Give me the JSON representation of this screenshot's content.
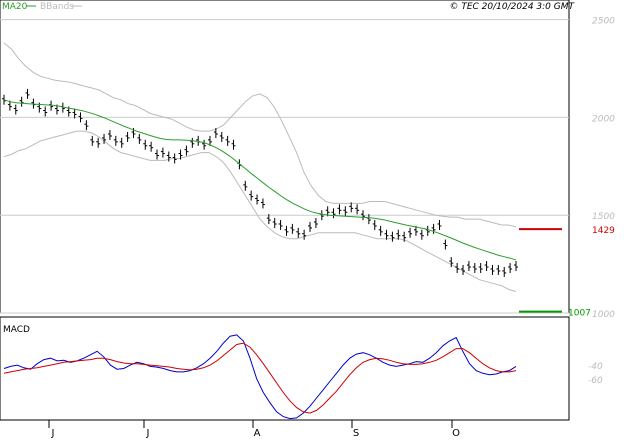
{
  "header": {
    "legend": [
      {
        "label": "MA20",
        "color": "#2a9d2a"
      },
      {
        "label": "BBands",
        "color": "#bbbbbb"
      }
    ],
    "copyright": "© TEC 20/10/2024 3:0 GMT"
  },
  "chart_data": [
    {
      "type": "line",
      "panel": "price",
      "ylim": [
        1000,
        2600
      ],
      "y_ticks": [
        "2500",
        "2000",
        "1500",
        "1000"
      ],
      "x_ticks": [
        "J",
        "J",
        "A",
        "S",
        "O"
      ],
      "grid": true,
      "legend_position": "top-left",
      "price_bars": [
        2090,
        2060,
        2040,
        2080,
        2120,
        2070,
        2050,
        2030,
        2060,
        2040,
        2050,
        2030,
        2020,
        2000,
        1960,
        1880,
        1870,
        1890,
        1910,
        1880,
        1870,
        1900,
        1920,
        1890,
        1860,
        1850,
        1810,
        1820,
        1800,
        1790,
        1810,
        1830,
        1870,
        1880,
        1860,
        1880,
        1920,
        1900,
        1880,
        1860,
        1760,
        1650,
        1600,
        1580,
        1560,
        1480,
        1460,
        1450,
        1420,
        1430,
        1410,
        1400,
        1440,
        1460,
        1500,
        1520,
        1510,
        1530,
        1520,
        1540,
        1530,
        1500,
        1480,
        1450,
        1420,
        1400,
        1390,
        1400,
        1390,
        1410,
        1420,
        1400,
        1420,
        1430,
        1450,
        1350,
        1260,
        1230,
        1220,
        1240,
        1230,
        1230,
        1240,
        1220,
        1220,
        1210,
        1230,
        1240
      ],
      "series": [
        {
          "name": "MA20",
          "color": "#2a9d2a",
          "values": [
            2090,
            2080,
            2075,
            2072,
            2070,
            2068,
            2066,
            2064,
            2062,
            2058,
            2052,
            2046,
            2040,
            2034,
            2026,
            2016,
            2005,
            1993,
            1980,
            1967,
            1954,
            1942,
            1930,
            1920,
            1910,
            1900,
            1892,
            1887,
            1885,
            1885,
            1884,
            1882,
            1878,
            1872,
            1862,
            1848,
            1832,
            1812,
            1790,
            1765,
            1740,
            1714,
            1690,
            1666,
            1642,
            1620,
            1598,
            1578,
            1560,
            1545,
            1530,
            1518,
            1510,
            1504,
            1500,
            1498,
            1496,
            1494,
            1492,
            1490,
            1488,
            1486,
            1482,
            1477,
            1470,
            1462,
            1455,
            1448,
            1442,
            1436,
            1430,
            1420,
            1410,
            1398,
            1386,
            1373,
            1360,
            1348,
            1337,
            1326,
            1316,
            1306,
            1296,
            1288,
            1280,
            1272
          ]
        },
        {
          "name": "",
          "color": "#bbbbbb",
          "values": [
            2380,
            2350,
            2300,
            2260,
            2230,
            2210,
            2200,
            2190,
            2185,
            2180,
            2170,
            2160,
            2150,
            2140,
            2120,
            2100,
            2090,
            2070,
            2060,
            2040,
            2020,
            2010,
            2000,
            1990,
            1970,
            1950,
            1935,
            1930,
            1930,
            1940,
            1960,
            2000,
            2040,
            2080,
            2110,
            2120,
            2100,
            2050,
            1980,
            1900,
            1820,
            1720,
            1650,
            1600,
            1570,
            1560,
            1560,
            1560,
            1560,
            1560,
            1570,
            1570,
            1570,
            1560,
            1550,
            1540,
            1530,
            1520,
            1510,
            1500,
            1495,
            1490,
            1490,
            1480,
            1480,
            1480,
            1470,
            1460,
            1450,
            1450,
            1440
          ]
        },
        {
          "name": "",
          "color": "#bbbbbb",
          "values": [
            1800,
            1810,
            1830,
            1840,
            1860,
            1880,
            1890,
            1900,
            1910,
            1920,
            1930,
            1930,
            1920,
            1900,
            1870,
            1840,
            1820,
            1810,
            1800,
            1790,
            1780,
            1780,
            1780,
            1790,
            1790,
            1800,
            1810,
            1820,
            1820,
            1800,
            1770,
            1720,
            1660,
            1600,
            1540,
            1480,
            1440,
            1410,
            1390,
            1380,
            1380,
            1390,
            1400,
            1410,
            1410,
            1410,
            1410,
            1410,
            1410,
            1400,
            1390,
            1380,
            1380,
            1380,
            1380,
            1370,
            1350,
            1330,
            1310,
            1290,
            1270,
            1250,
            1230,
            1210,
            1190,
            1170,
            1160,
            1150,
            1140,
            1120,
            1110
          ]
        }
      ],
      "markers": [
        {
          "value": 1429,
          "label": "1429",
          "color": "#cc0000"
        },
        {
          "value": 1007,
          "label": "1007",
          "color": "#009900"
        }
      ]
    },
    {
      "type": "line",
      "panel": "macd",
      "title": "MACD",
      "ylim": [
        -120,
        30
      ],
      "y_ticks": [
        "-40",
        "-60"
      ],
      "y_tick_values": [
        -40,
        -60
      ],
      "grid": false,
      "series": [
        {
          "name": "MACD",
          "color": "#0000cc",
          "values": [
            -45,
            -42,
            -40,
            -44,
            -46,
            -38,
            -32,
            -30,
            -34,
            -33,
            -36,
            -34,
            -30,
            -25,
            -20,
            -28,
            -40,
            -46,
            -45,
            -40,
            -36,
            -38,
            -42,
            -43,
            -45,
            -48,
            -50,
            -50,
            -48,
            -44,
            -38,
            -30,
            -20,
            -8,
            2,
            4,
            -5,
            -30,
            -60,
            -80,
            -95,
            -108,
            -115,
            -118,
            -117,
            -110,
            -100,
            -88,
            -76,
            -64,
            -52,
            -40,
            -30,
            -24,
            -22,
            -25,
            -30,
            -36,
            -40,
            -42,
            -40,
            -38,
            -35,
            -36,
            -30,
            -22,
            -12,
            -5,
            0,
            -20,
            -38,
            -48,
            -52,
            -54,
            -53,
            -50,
            -48,
            -42
          ]
        },
        {
          "name": "Signal",
          "color": "#cc0000",
          "values": [
            -52,
            -50,
            -48,
            -46,
            -45,
            -44,
            -42,
            -40,
            -38,
            -36,
            -35,
            -34,
            -33,
            -32,
            -30,
            -30,
            -32,
            -35,
            -37,
            -38,
            -38,
            -39,
            -40,
            -41,
            -42,
            -43,
            -45,
            -46,
            -47,
            -46,
            -44,
            -40,
            -34,
            -26,
            -18,
            -10,
            -8,
            -14,
            -25,
            -38,
            -52,
            -66,
            -80,
            -92,
            -102,
            -108,
            -110,
            -106,
            -98,
            -88,
            -78,
            -66,
            -54,
            -44,
            -36,
            -32,
            -30,
            -31,
            -33,
            -36,
            -38,
            -39,
            -39,
            -38,
            -36,
            -33,
            -28,
            -22,
            -16,
            -16,
            -22,
            -30,
            -38,
            -44,
            -48,
            -50,
            -50,
            -48
          ]
        }
      ]
    }
  ]
}
